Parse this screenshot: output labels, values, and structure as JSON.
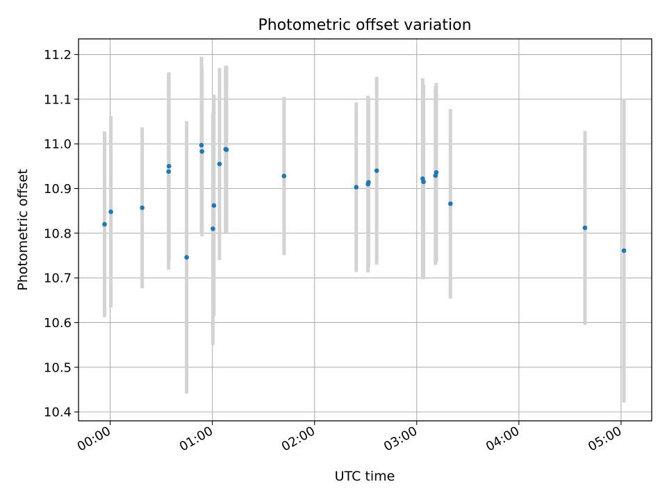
{
  "chart_data": {
    "type": "scatter",
    "title": "Photometric offset variation",
    "xlabel": "UTC time",
    "ylabel": "Photometric offset",
    "x_unit": "minutes",
    "xlim": [
      -18.6,
      318.0
    ],
    "ylim": [
      10.38,
      11.235
    ],
    "xticks": [
      {
        "value": 0,
        "label": "00:00"
      },
      {
        "value": 60,
        "label": "01:00"
      },
      {
        "value": 120,
        "label": "02:00"
      },
      {
        "value": 180,
        "label": "03:00"
      },
      {
        "value": 240,
        "label": "04:00"
      },
      {
        "value": 300,
        "label": "05:00"
      }
    ],
    "yticks": [
      {
        "value": 10.4,
        "label": "10.4"
      },
      {
        "value": 10.5,
        "label": "10.5"
      },
      {
        "value": 10.6,
        "label": "10.6"
      },
      {
        "value": 10.7,
        "label": "10.7"
      },
      {
        "value": 10.8,
        "label": "10.8"
      },
      {
        "value": 10.9,
        "label": "10.9"
      },
      {
        "value": 11.0,
        "label": "11.0"
      },
      {
        "value": 11.1,
        "label": "11.1"
      },
      {
        "value": 11.2,
        "label": "11.2"
      }
    ],
    "grid": true,
    "colors": {
      "point": "#1f77b4",
      "errorbar": "#d3d3d3",
      "grid": "#b0b0b0"
    },
    "points": [
      {
        "x": -3.3,
        "y": 10.82,
        "yerr": 0.208
      },
      {
        "x": 0.4,
        "y": 10.848,
        "yerr": 0.214
      },
      {
        "x": 18.8,
        "y": 10.857,
        "yerr": 0.18
      },
      {
        "x": 34.3,
        "y": 10.938,
        "yerr": 0.22
      },
      {
        "x": 34.5,
        "y": 10.95,
        "yerr": 0.21
      },
      {
        "x": 44.9,
        "y": 10.746,
        "yerr": 0.305
      },
      {
        "x": 53.6,
        "y": 10.997,
        "yerr": 0.198
      },
      {
        "x": 53.9,
        "y": 10.983,
        "yerr": 0.19
      },
      {
        "x": 60.3,
        "y": 10.81,
        "yerr": 0.26
      },
      {
        "x": 60.9,
        "y": 10.862,
        "yerr": 0.248
      },
      {
        "x": 64.2,
        "y": 10.955,
        "yerr": 0.215
      },
      {
        "x": 67.8,
        "y": 10.988,
        "yerr": 0.187
      },
      {
        "x": 68.3,
        "y": 10.987,
        "yerr": 0.187
      },
      {
        "x": 102.1,
        "y": 10.928,
        "yerr": 0.177
      },
      {
        "x": 144.5,
        "y": 10.903,
        "yerr": 0.19
      },
      {
        "x": 151.4,
        "y": 10.91,
        "yerr": 0.198
      },
      {
        "x": 151.7,
        "y": 10.914,
        "yerr": 0.19
      },
      {
        "x": 156.5,
        "y": 10.94,
        "yerr": 0.21
      },
      {
        "x": 183.5,
        "y": 10.922,
        "yerr": 0.225
      },
      {
        "x": 184.0,
        "y": 10.915,
        "yerr": 0.218
      },
      {
        "x": 191.0,
        "y": 10.929,
        "yerr": 0.2
      },
      {
        "x": 191.5,
        "y": 10.936,
        "yerr": 0.2
      },
      {
        "x": 199.8,
        "y": 10.866,
        "yerr": 0.212
      },
      {
        "x": 278.8,
        "y": 10.812,
        "yerr": 0.217
      },
      {
        "x": 301.7,
        "y": 10.761,
        "yerr": 0.34
      }
    ]
  }
}
